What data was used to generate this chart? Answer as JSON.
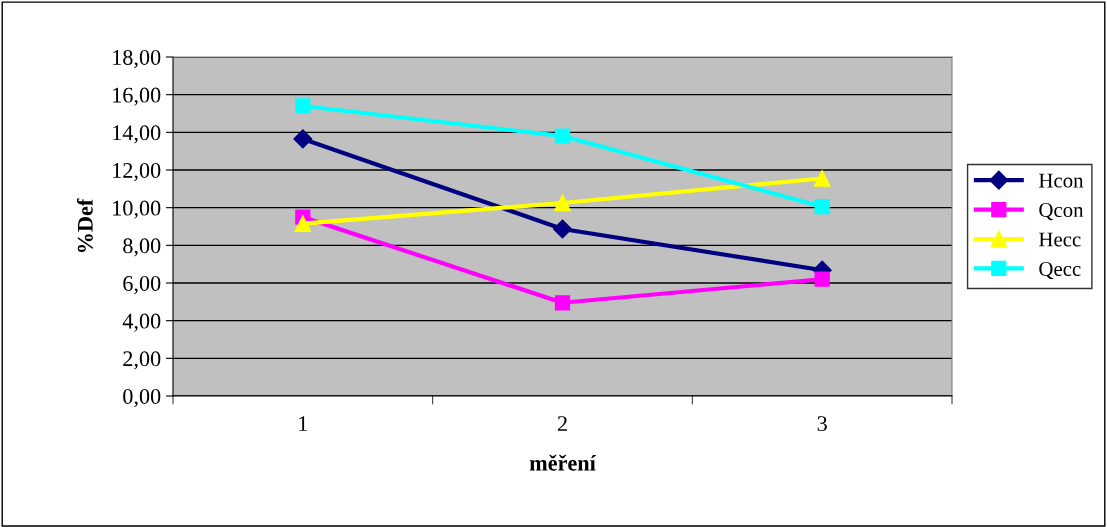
{
  "chart_data": {
    "type": "line",
    "xlabel": "měření",
    "ylabel": "%Def",
    "categories": [
      "1",
      "2",
      "3"
    ],
    "series": [
      {
        "name": "Hcon",
        "color": "#000080",
        "marker": "diamond",
        "values": [
          13.65,
          8.87,
          6.68
        ]
      },
      {
        "name": "Qcon",
        "color": "#ff00ff",
        "marker": "square",
        "values": [
          9.5,
          4.95,
          6.2
        ]
      },
      {
        "name": "Hecc",
        "color": "#ffff00",
        "marker": "triangle",
        "values": [
          9.15,
          10.25,
          11.55
        ]
      },
      {
        "name": "Qecc",
        "color": "#00ffff",
        "marker": "square",
        "values": [
          15.4,
          13.8,
          10.05
        ]
      }
    ],
    "ylim": [
      0,
      18
    ],
    "yticks": [
      {
        "value": 0,
        "label": "0,00"
      },
      {
        "value": 2,
        "label": "2,00"
      },
      {
        "value": 4,
        "label": "4,00"
      },
      {
        "value": 6,
        "label": "6,00"
      },
      {
        "value": 8,
        "label": "8,00"
      },
      {
        "value": 10,
        "label": "10,00"
      },
      {
        "value": 12,
        "label": "12,00"
      },
      {
        "value": 14,
        "label": "14,00"
      },
      {
        "value": 16,
        "label": "16,00"
      },
      {
        "value": 18,
        "label": "18,00"
      }
    ],
    "grid": "y",
    "legend": "right",
    "line_style": "solid"
  }
}
